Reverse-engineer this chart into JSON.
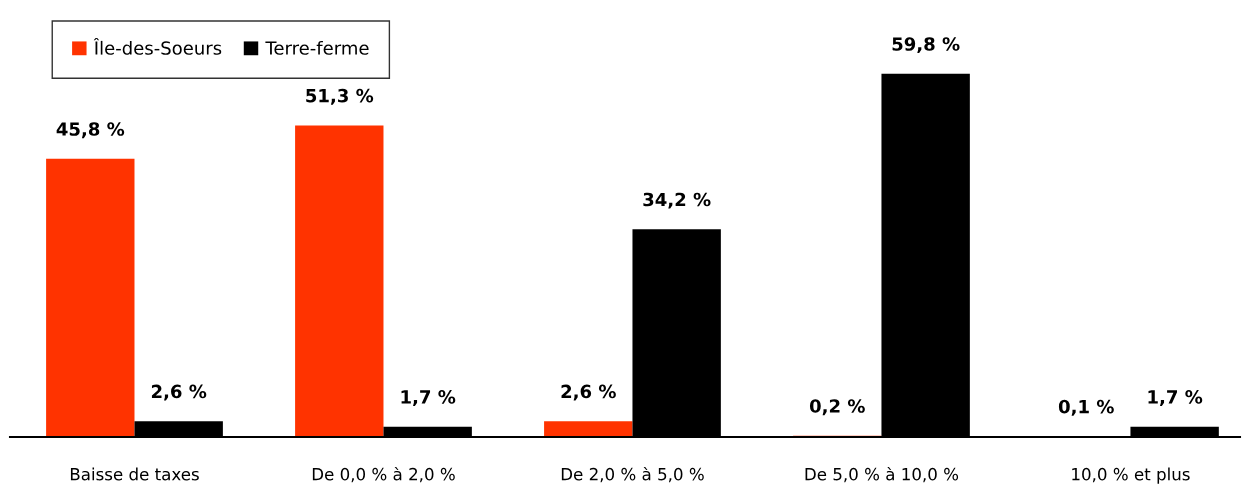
{
  "chart_data": {
    "type": "bar",
    "categories": [
      "Baisse de taxes",
      "De 0,0 % à 2,0 %",
      "De 2,0 % à 5,0 %",
      "De 5,0 % à 10,0 %",
      "10,0 % et plus"
    ],
    "series": [
      {
        "name": "Île-des-Soeurs",
        "color": "#ff3300",
        "values": [
          45.8,
          51.3,
          2.6,
          0.2,
          0.1
        ],
        "value_labels": [
          "45,8 %",
          "51,3 %",
          "2,6 %",
          "0,2 %",
          "0,1 %"
        ]
      },
      {
        "name": "Terre-ferme",
        "color": "#000000",
        "values": [
          2.6,
          1.7,
          34.2,
          59.8,
          1.7
        ],
        "value_labels": [
          "2,6 %",
          "1,7 %",
          "34,2 %",
          "59,8 %",
          "1,7 %"
        ]
      }
    ],
    "legend": "top left",
    "grid": false
  }
}
